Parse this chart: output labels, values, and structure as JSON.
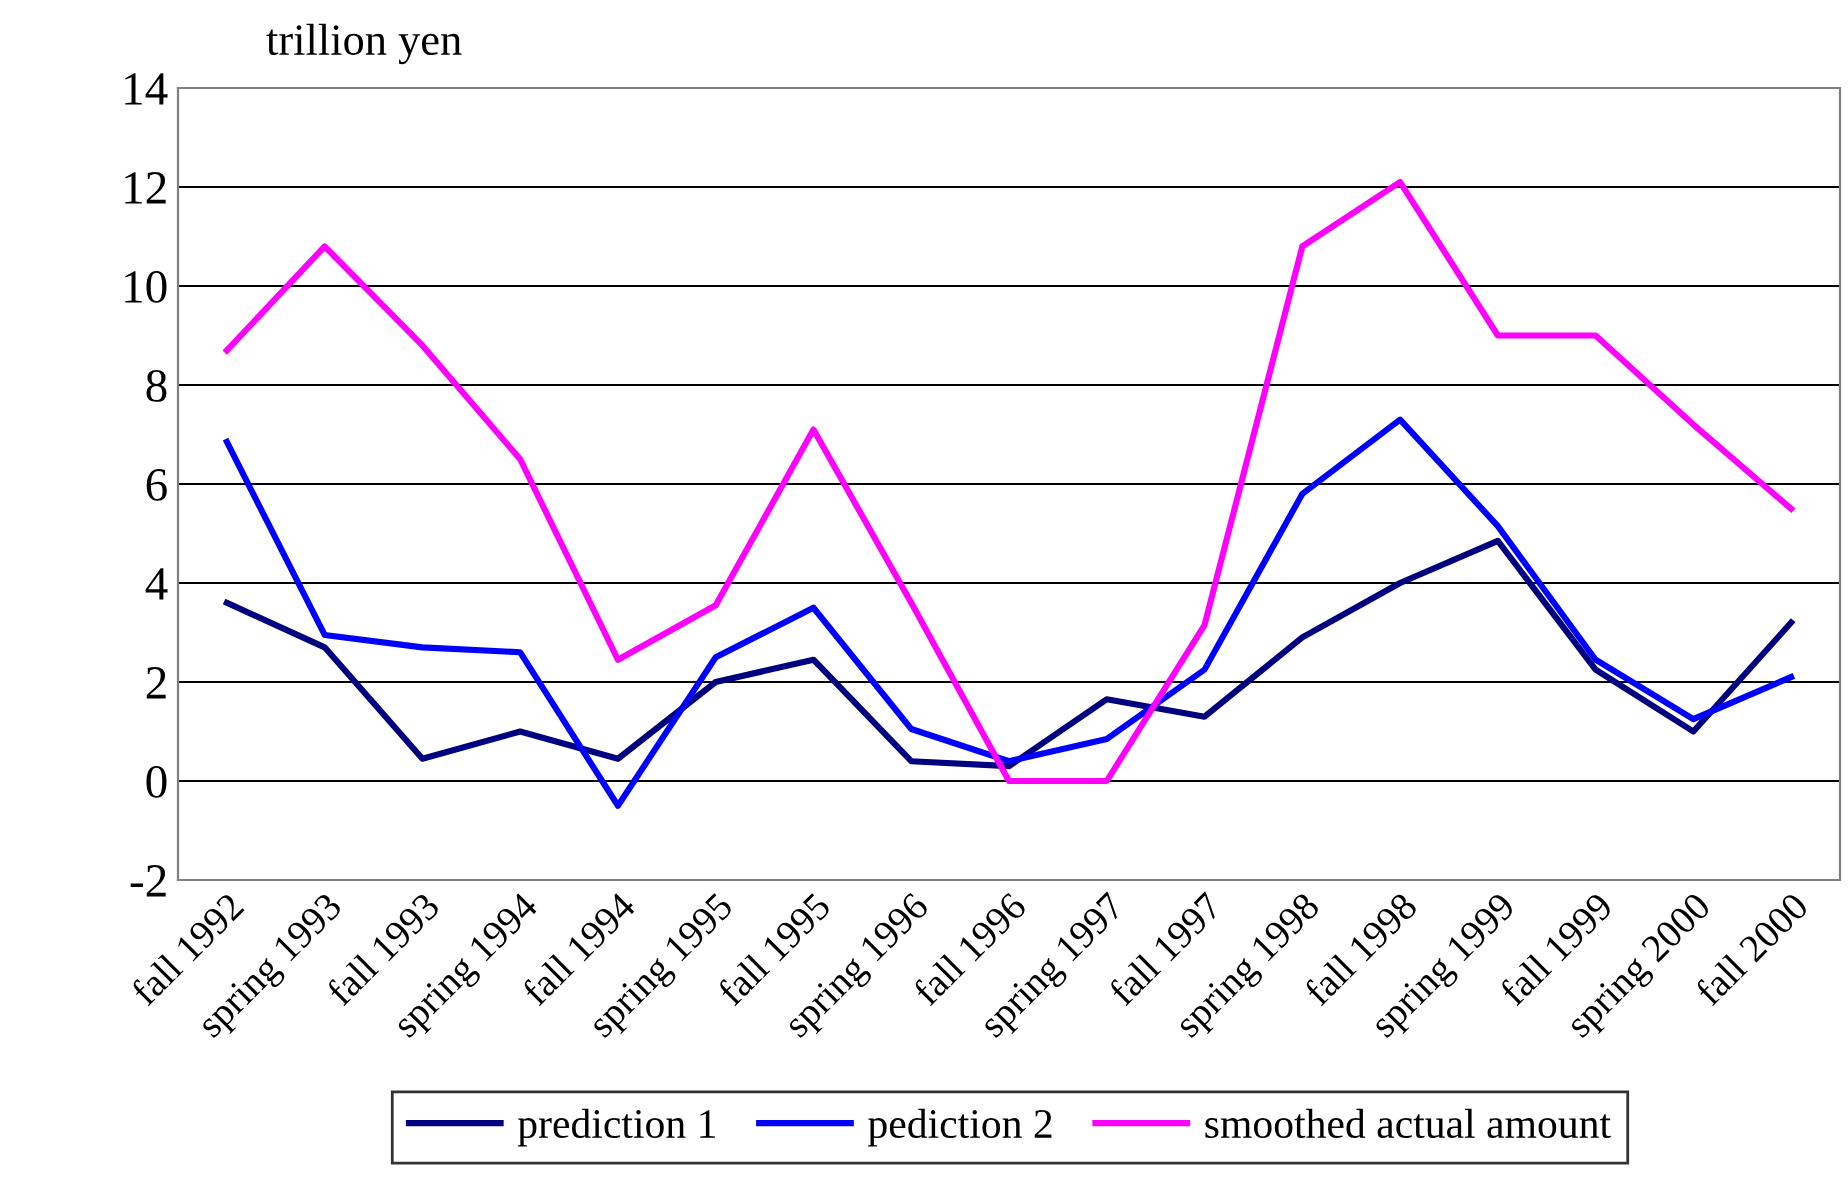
{
  "chart_data": {
    "type": "line",
    "ylabel": "trillion yen",
    "categories": [
      "fall 1992",
      "spring 1993",
      "fall 1993",
      "spring 1994",
      "fall 1994",
      "spring 1995",
      "fall 1995",
      "spring 1996",
      "fall 1996",
      "spring 1997",
      "fall 1997",
      "spring 1998",
      "fall 1998",
      "spring 1999",
      "fall 1999",
      "spring 2000",
      "fall 2000"
    ],
    "series": [
      {
        "name": "prediction 1",
        "color": "#000080",
        "values": [
          3.6,
          2.7,
          0.45,
          1.0,
          0.45,
          2.0,
          2.45,
          0.4,
          0.3,
          1.65,
          1.3,
          2.9,
          4.0,
          4.85,
          2.25,
          1.0,
          3.2
        ]
      },
      {
        "name": "pediction 2",
        "color": "#0000ff",
        "values": [
          6.85,
          2.95,
          2.7,
          2.6,
          -0.5,
          2.5,
          3.5,
          1.05,
          0.4,
          0.85,
          2.25,
          5.8,
          7.3,
          5.15,
          2.45,
          1.25,
          2.1
        ]
      },
      {
        "name": "smoothed actual amount",
        "color": "#ff00ff",
        "values": [
          8.7,
          10.8,
          8.8,
          6.5,
          2.45,
          3.55,
          7.1,
          3.6,
          0.0,
          0.0,
          3.15,
          10.8,
          12.1,
          9.0,
          9.0,
          7.2,
          5.5
        ]
      }
    ],
    "ylim": [
      -2,
      14
    ],
    "yticks": [
      -2,
      0,
      2,
      4,
      6,
      8,
      10,
      12,
      14
    ],
    "grid": "y",
    "legend": "bottom",
    "marker": "none",
    "line_style": "solid"
  }
}
